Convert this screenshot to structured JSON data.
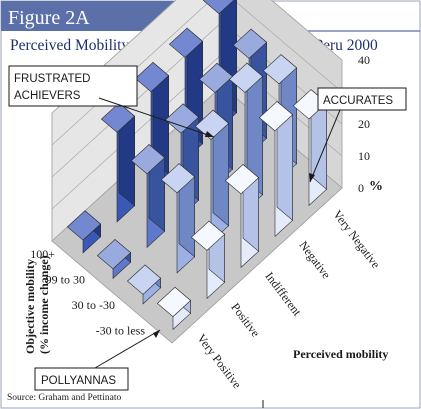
{
  "figure_label": "Figure 2A",
  "source": "Source: Graham and Pettinato",
  "callouts": {
    "frustrated": [
      "FRUSTRATED",
      "ACHIEVERS"
    ],
    "accurates": "ACCURATES",
    "pollyannas": "POLLYANNAS"
  },
  "chart_data": {
    "type": "bar3d",
    "title": "Perceived Mobility v. 1991-00 Income Mobility, Peru 2000",
    "zlabel": "%",
    "zticks": [
      0,
      10,
      20,
      30,
      40
    ],
    "zlim": [
      0,
      40
    ],
    "x_label": "Perceived mobility",
    "x_categories": [
      "Very Positive",
      "Positive",
      "Indifferent",
      "Negative",
      "Very Negative"
    ],
    "y_label_lines": [
      "Objective mobility",
      "(% income change)"
    ],
    "y_categories": [
      "-30 to less",
      "30 to -30",
      "99 to 30",
      "100+"
    ],
    "series": [
      {
        "name": "100+",
        "values": [
          4,
          28,
          31,
          32,
          36
        ]
      },
      {
        "name": "99 to 30",
        "values": [
          3,
          23,
          26,
          29,
          30
        ]
      },
      {
        "name": "30 to -30",
        "values": [
          3,
          25,
          32,
          37,
          30
        ]
      },
      {
        "name": "-30 to less",
        "values": [
          4,
          15,
          23,
          33,
          27
        ]
      }
    ],
    "colors": {
      "100+": [
        "#3a58b6",
        "#223a86",
        "#7388d0"
      ],
      "99 to 30": [
        "#5e79cb",
        "#38549f",
        "#98aade"
      ],
      "30 to -30": [
        "#9db0e6",
        "#7087c5",
        "#c9d4f2"
      ],
      "-30 to less": [
        "#e4ebfb",
        "#b3c2e6",
        "#f5f8ff"
      ]
    }
  }
}
